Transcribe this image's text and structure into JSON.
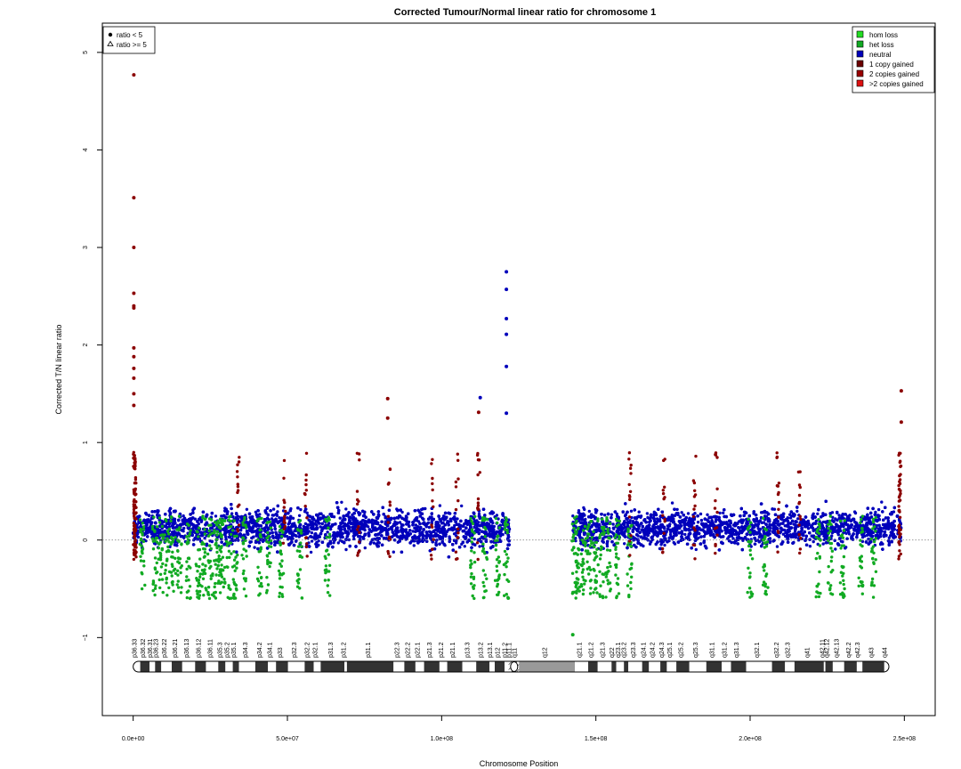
{
  "chart_data": {
    "type": "scatter",
    "title": "Corrected Tumour/Normal linear ratio for chromosome  1",
    "xlabel": "Chromosome Position",
    "ylabel": "Corrected T/N linear ratio",
    "xlim": [
      -10000000,
      260000000
    ],
    "ylim": [
      -1.8,
      5.3
    ],
    "x_ticks": [
      0,
      50000000,
      100000000,
      150000000,
      200000000,
      250000000
    ],
    "x_tick_labels": [
      "0.0e+00",
      "5.0e+07",
      "1.0e+08",
      "1.5e+08",
      "2.0e+08",
      "2.5e+08"
    ],
    "y_ticks": [
      -1,
      0,
      1,
      2,
      3,
      4,
      5
    ],
    "y_tick_labels": [
      "−1",
      "0",
      "1",
      "2",
      "3",
      "4",
      "5"
    ],
    "reference_line_y": 0,
    "shape_legend": {
      "position": "top-left",
      "entries": [
        {
          "label": "ratio < 5",
          "shape": "filled-circle"
        },
        {
          "label": "ratio >= 5",
          "shape": "open-triangle"
        }
      ]
    },
    "legend": {
      "position": "top-right",
      "entries": [
        {
          "label": "hom loss",
          "color": "#22dd22"
        },
        {
          "label": "het loss",
          "color": "#11aa22"
        },
        {
          "label": "neutral",
          "color": "#0000bb"
        },
        {
          "label": "1 copy gained",
          "color": "#6b0000"
        },
        {
          "label": "2 copies gained",
          "color": "#990000"
        },
        {
          "label": ">2 copies gained",
          "color": "#dd1111"
        }
      ]
    },
    "series": [
      {
        "name": "neutral",
        "color": "#0000bb",
        "x_range": [
          0,
          249000000
        ],
        "gap": [
          122000000,
          142500000
        ],
        "typical_range": [
          -0.5,
          0.75
        ]
      },
      {
        "name": "het loss",
        "color": "#11aa22",
        "typical_range": [
          -0.72,
          0.35
        ]
      },
      {
        "name": "1 copy gained",
        "color": "#8b0000"
      }
    ],
    "highlight_points": [
      {
        "x": 200000,
        "y": 4.77,
        "series": "1 copy gained"
      },
      {
        "x": 200000,
        "y": 3.51,
        "series": "1 copy gained"
      },
      {
        "x": 200000,
        "y": 3.0,
        "series": "1 copy gained"
      },
      {
        "x": 200000,
        "y": 2.53,
        "series": "1 copy gained"
      },
      {
        "x": 200000,
        "y": 2.4,
        "series": "1 copy gained"
      },
      {
        "x": 200000,
        "y": 2.38,
        "series": "1 copy gained"
      },
      {
        "x": 200000,
        "y": 1.97,
        "series": "1 copy gained"
      },
      {
        "x": 200000,
        "y": 1.88,
        "series": "1 copy gained"
      },
      {
        "x": 200000,
        "y": 1.76,
        "series": "1 copy gained"
      },
      {
        "x": 200000,
        "y": 1.66,
        "series": "1 copy gained"
      },
      {
        "x": 200000,
        "y": 1.5,
        "series": "1 copy gained"
      },
      {
        "x": 200000,
        "y": 1.38,
        "series": "1 copy gained"
      },
      {
        "x": 82500000,
        "y": 1.45,
        "series": "1 copy gained"
      },
      {
        "x": 82500000,
        "y": 1.25,
        "series": "1 copy gained"
      },
      {
        "x": 112500000,
        "y": 1.46,
        "series": "neutral"
      },
      {
        "x": 112000000,
        "y": 1.31,
        "series": "1 copy gained"
      },
      {
        "x": 121000000,
        "y": 2.75,
        "series": "neutral"
      },
      {
        "x": 121000000,
        "y": 2.57,
        "series": "neutral"
      },
      {
        "x": 121000000,
        "y": 2.27,
        "series": "neutral"
      },
      {
        "x": 121000000,
        "y": 2.11,
        "series": "neutral"
      },
      {
        "x": 121000000,
        "y": 1.78,
        "series": "neutral"
      },
      {
        "x": 121000000,
        "y": 1.3,
        "series": "neutral"
      },
      {
        "x": 249000000,
        "y": 1.53,
        "series": "1 copy gained"
      },
      {
        "x": 249000000,
        "y": 1.21,
        "series": "1 copy gained"
      },
      {
        "x": 142500000,
        "y": -0.97,
        "series": "het loss"
      }
    ],
    "ideogram": {
      "centromere": 123500000,
      "bands": [
        {
          "name": "p36.33",
          "start": 0,
          "end": 2300000,
          "stain": "gneg"
        },
        {
          "name": "p36.32",
          "start": 2300000,
          "end": 5300000,
          "stain": "gpos"
        },
        {
          "name": "p36.31",
          "start": 5300000,
          "end": 7100000,
          "stain": "gneg"
        },
        {
          "name": "p36.23",
          "start": 7100000,
          "end": 9100000,
          "stain": "gpos"
        },
        {
          "name": "p36.22",
          "start": 9100000,
          "end": 12500000,
          "stain": "gneg"
        },
        {
          "name": "p36.21",
          "start": 12500000,
          "end": 15900000,
          "stain": "gpos"
        },
        {
          "name": "p36.13",
          "start": 15900000,
          "end": 20100000,
          "stain": "gneg"
        },
        {
          "name": "p36.12",
          "start": 20100000,
          "end": 23600000,
          "stain": "gpos"
        },
        {
          "name": "p36.11",
          "start": 23600000,
          "end": 27600000,
          "stain": "gneg"
        },
        {
          "name": "p35.3",
          "start": 27600000,
          "end": 29900000,
          "stain": "gpos"
        },
        {
          "name": "p35.2",
          "start": 29900000,
          "end": 32300000,
          "stain": "gneg"
        },
        {
          "name": "p35.1",
          "start": 32300000,
          "end": 34300000,
          "stain": "gpos"
        },
        {
          "name": "p34.3",
          "start": 34300000,
          "end": 39600000,
          "stain": "gneg"
        },
        {
          "name": "p34.2",
          "start": 39600000,
          "end": 43700000,
          "stain": "gpos"
        },
        {
          "name": "p34.1",
          "start": 43700000,
          "end": 46300000,
          "stain": "gneg"
        },
        {
          "name": "p33",
          "start": 46300000,
          "end": 50200000,
          "stain": "gpos"
        },
        {
          "name": "p32.3",
          "start": 50200000,
          "end": 55600000,
          "stain": "gneg"
        },
        {
          "name": "p32.2",
          "start": 55600000,
          "end": 58500000,
          "stain": "gpos"
        },
        {
          "name": "p32.1",
          "start": 58500000,
          "end": 60800000,
          "stain": "gneg"
        },
        {
          "name": "p31.3",
          "start": 60800000,
          "end": 68500000,
          "stain": "gpos"
        },
        {
          "name": "p31.2",
          "start": 68500000,
          "end": 69300000,
          "stain": "gneg"
        },
        {
          "name": "p31.1",
          "start": 69300000,
          "end": 84400000,
          "stain": "gpos"
        },
        {
          "name": "p22.3",
          "start": 84400000,
          "end": 87900000,
          "stain": "gneg"
        },
        {
          "name": "p22.2",
          "start": 87900000,
          "end": 91500000,
          "stain": "gpos"
        },
        {
          "name": "p22.1",
          "start": 91500000,
          "end": 94300000,
          "stain": "gneg"
        },
        {
          "name": "p21.3",
          "start": 94300000,
          "end": 99300000,
          "stain": "gpos"
        },
        {
          "name": "p21.2",
          "start": 99300000,
          "end": 101800000,
          "stain": "gneg"
        },
        {
          "name": "p21.1",
          "start": 101800000,
          "end": 106700000,
          "stain": "gpos"
        },
        {
          "name": "p13.3",
          "start": 106700000,
          "end": 111200000,
          "stain": "gneg"
        },
        {
          "name": "p13.2",
          "start": 111200000,
          "end": 115500000,
          "stain": "gpos"
        },
        {
          "name": "p13.1",
          "start": 115500000,
          "end": 117200000,
          "stain": "gneg"
        },
        {
          "name": "p12",
          "start": 117200000,
          "end": 120400000,
          "stain": "gpos"
        },
        {
          "name": "p11.2",
          "start": 120400000,
          "end": 121700000,
          "stain": "gneg"
        },
        {
          "name": "p11.1",
          "start": 121700000,
          "end": 123400000,
          "stain": "stalk"
        },
        {
          "name": "q11",
          "start": 123400000,
          "end": 125100000,
          "stain": "stalk"
        },
        {
          "name": "q12",
          "start": 125100000,
          "end": 143200000,
          "stain": "gvar"
        },
        {
          "name": "q21.1",
          "start": 143200000,
          "end": 147500000,
          "stain": "gneg"
        },
        {
          "name": "q21.2",
          "start": 147500000,
          "end": 150600000,
          "stain": "gpos"
        },
        {
          "name": "q21.3",
          "start": 150600000,
          "end": 155100000,
          "stain": "gneg"
        },
        {
          "name": "q22",
          "start": 155100000,
          "end": 156600000,
          "stain": "gpos"
        },
        {
          "name": "q23.1",
          "start": 156600000,
          "end": 159100000,
          "stain": "gneg"
        },
        {
          "name": "q23.2",
          "start": 159100000,
          "end": 160500000,
          "stain": "gpos"
        },
        {
          "name": "q23.3",
          "start": 160500000,
          "end": 165000000,
          "stain": "gneg"
        },
        {
          "name": "q24.1",
          "start": 165000000,
          "end": 167200000,
          "stain": "gpos"
        },
        {
          "name": "q24.2",
          "start": 167200000,
          "end": 170900000,
          "stain": "gneg"
        },
        {
          "name": "q24.3",
          "start": 170900000,
          "end": 173000000,
          "stain": "gpos"
        },
        {
          "name": "q25.1",
          "start": 173000000,
          "end": 176100000,
          "stain": "gneg"
        },
        {
          "name": "q25.2",
          "start": 176100000,
          "end": 180300000,
          "stain": "gpos"
        },
        {
          "name": "q25.3",
          "start": 180300000,
          "end": 185800000,
          "stain": "gneg"
        },
        {
          "name": "q31.1",
          "start": 185800000,
          "end": 190800000,
          "stain": "gpos"
        },
        {
          "name": "q31.2",
          "start": 190800000,
          "end": 193800000,
          "stain": "gneg"
        },
        {
          "name": "q31.3",
          "start": 193800000,
          "end": 198700000,
          "stain": "gpos"
        },
        {
          "name": "q32.1",
          "start": 198700000,
          "end": 207100000,
          "stain": "gneg"
        },
        {
          "name": "q32.2",
          "start": 207100000,
          "end": 211300000,
          "stain": "gpos"
        },
        {
          "name": "q32.3",
          "start": 211300000,
          "end": 214400000,
          "stain": "gneg"
        },
        {
          "name": "q41",
          "start": 214400000,
          "end": 223900000,
          "stain": "gpos"
        },
        {
          "name": "q42.11",
          "start": 223900000,
          "end": 224400000,
          "stain": "gneg"
        },
        {
          "name": "q42.12",
          "start": 224400000,
          "end": 226800000,
          "stain": "gpos"
        },
        {
          "name": "q42.13",
          "start": 226800000,
          "end": 230500000,
          "stain": "gneg"
        },
        {
          "name": "q42.2",
          "start": 230500000,
          "end": 234600000,
          "stain": "gpos"
        },
        {
          "name": "q42.3",
          "start": 234600000,
          "end": 236400000,
          "stain": "gneg"
        },
        {
          "name": "q43",
          "start": 236400000,
          "end": 243500000,
          "stain": "gpos"
        },
        {
          "name": "q44",
          "start": 243500000,
          "end": 245000000,
          "stain": "gneg"
        }
      ]
    }
  }
}
